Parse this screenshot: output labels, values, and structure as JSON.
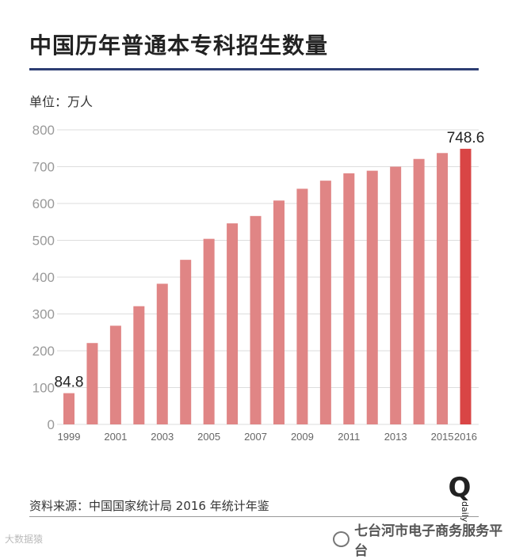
{
  "title": "中国历年普通本专科招生数量",
  "unit": "单位：万人",
  "source": "资料来源：中国国家统计局 2016 年统计年鉴",
  "watermark_left": "大数据猿",
  "watermark_right": "七台河市电子商务服务平台",
  "logo_mark": "Q",
  "logo_text": "daily",
  "colors": {
    "bar": "#e08585",
    "bar_highlight": "#d94545",
    "rule": "#2d3e73",
    "grid": "#dddddd",
    "tick": "#999999"
  },
  "chart_data": {
    "type": "bar",
    "title": "中国历年普通本专科招生数量",
    "xlabel": "",
    "ylabel": "单位：万人",
    "ylim": [
      0,
      800
    ],
    "yticks": [
      0,
      100,
      200,
      300,
      400,
      500,
      600,
      700,
      800
    ],
    "grid": true,
    "categories": [
      "1999",
      "2000",
      "2001",
      "2002",
      "2003",
      "2004",
      "2005",
      "2006",
      "2007",
      "2008",
      "2009",
      "2010",
      "2011",
      "2012",
      "2013",
      "2014",
      "2015",
      "2016"
    ],
    "xtick_labels": [
      "1999",
      "",
      "2001",
      "",
      "2003",
      "",
      "2005",
      "",
      "2007",
      "",
      "2009",
      "",
      "2011",
      "",
      "2013",
      "",
      "2015",
      "2016"
    ],
    "values": [
      84.8,
      221,
      268,
      321,
      382,
      447,
      504,
      546,
      566,
      608,
      640,
      662,
      682,
      689,
      700,
      721,
      737,
      748.6
    ],
    "data_labels": [
      "84.8",
      "",
      "",
      "",
      "",
      "",
      "",
      "",
      "",
      "",
      "",
      "",
      "",
      "",
      "",
      "",
      "",
      "748.6"
    ],
    "highlight_index": 17
  }
}
